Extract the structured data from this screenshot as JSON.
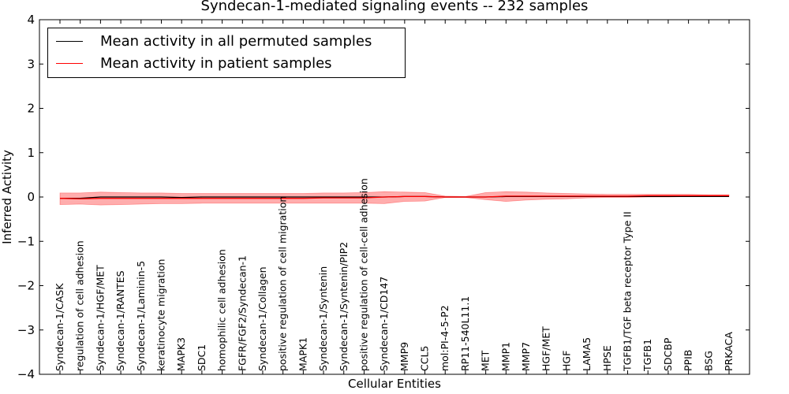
{
  "chart_data": {
    "type": "line",
    "title": "Syndecan-1-mediated signaling events -- 232 samples",
    "xlabel": "Cellular Entities",
    "ylabel": "Inferred Activity",
    "ylim": [
      -4,
      4
    ],
    "yticks": [
      4,
      3,
      2,
      1,
      0,
      -1,
      -2,
      -3,
      -4
    ],
    "ytick_labels": [
      "4",
      "3",
      "2",
      "1",
      "0",
      "−1",
      "−2",
      "−3",
      "−4"
    ],
    "categories": [
      "Syndecan-1/CASK",
      "regulation of cell adhesion",
      "Syndecan-1/HGF/MET",
      "Syndecan-1/RANTES",
      "Syndecan-1/Laminin-5",
      "keratinocyte migration",
      "MAPK3",
      "SDC1",
      "homophilic cell adhesion",
      "FGFR/FGF2/Syndecan-1",
      "Syndecan-1/Collagen",
      "positive regulation of cell migration",
      "MAPK1",
      "Syndecan-1/Syntenin",
      "Syndecan-1/Syntenin/PIP2",
      "positive regulation of cell-cell adhesion",
      "Syndecan-1/CD147",
      "MMP9",
      "CCL5",
      "mol:PI-4-5-P2",
      "RP11-540L11.1",
      "MET",
      "MMP1",
      "MMP7",
      "HGF/MET",
      "HGF",
      "LAMA5",
      "HPSE",
      "TGFB1/TGF beta receptor Type II",
      "TGFB1",
      "SDCBP",
      "PPIB",
      "BSG",
      "PRKACA"
    ],
    "series": [
      {
        "name": "Mean activity in all permuted samples",
        "color": "#000000",
        "values": [
          -0.03,
          -0.03,
          0.0,
          0.0,
          0.0,
          0.0,
          -0.01,
          0.0,
          0.0,
          0.0,
          0.0,
          0.0,
          0.0,
          0.0,
          0.0,
          0.0,
          0.0,
          0.01,
          0.01,
          0.0,
          0.0,
          0.0,
          0.01,
          0.01,
          0.01,
          0.01,
          0.01,
          0.01,
          0.01,
          0.01,
          0.01,
          0.01,
          0.01,
          0.01
        ]
      },
      {
        "name": "Mean activity in patient samples",
        "color": "#ff0000",
        "values": [
          -0.03,
          -0.04,
          -0.03,
          -0.03,
          -0.03,
          -0.03,
          -0.03,
          -0.03,
          -0.03,
          -0.03,
          -0.03,
          -0.03,
          -0.03,
          -0.02,
          -0.02,
          -0.02,
          0.0,
          0.01,
          0.01,
          0.0,
          0.0,
          0.0,
          0.02,
          0.02,
          0.02,
          0.02,
          0.02,
          0.02,
          0.02,
          0.03,
          0.03,
          0.03,
          0.03,
          0.03
        ]
      }
    ],
    "band": {
      "color": "#ff0000",
      "upper": [
        0.09,
        0.09,
        0.11,
        0.1,
        0.09,
        0.09,
        0.08,
        0.08,
        0.08,
        0.08,
        0.08,
        0.08,
        0.08,
        0.09,
        0.09,
        0.1,
        0.12,
        0.11,
        0.1,
        0.02,
        0.01,
        0.1,
        0.12,
        0.11,
        0.09,
        0.08,
        0.07,
        0.06,
        0.06,
        0.06,
        0.06,
        0.06,
        0.05,
        0.05
      ],
      "lower": [
        -0.17,
        -0.16,
        -0.18,
        -0.17,
        -0.16,
        -0.15,
        -0.15,
        -0.14,
        -0.14,
        -0.14,
        -0.14,
        -0.14,
        -0.14,
        -0.14,
        -0.14,
        -0.14,
        -0.15,
        -0.1,
        -0.09,
        -0.01,
        -0.01,
        -0.06,
        -0.1,
        -0.07,
        -0.05,
        -0.04,
        -0.02,
        -0.01,
        -0.01,
        0.0,
        0.0,
        0.01,
        0.01,
        0.01
      ]
    },
    "legend": {
      "placement": "top-left",
      "entries": [
        {
          "label": "Mean activity in all permuted samples",
          "color": "#000000"
        },
        {
          "label": "Mean activity in patient samples",
          "color": "#ff0000"
        }
      ]
    },
    "grid": false
  }
}
